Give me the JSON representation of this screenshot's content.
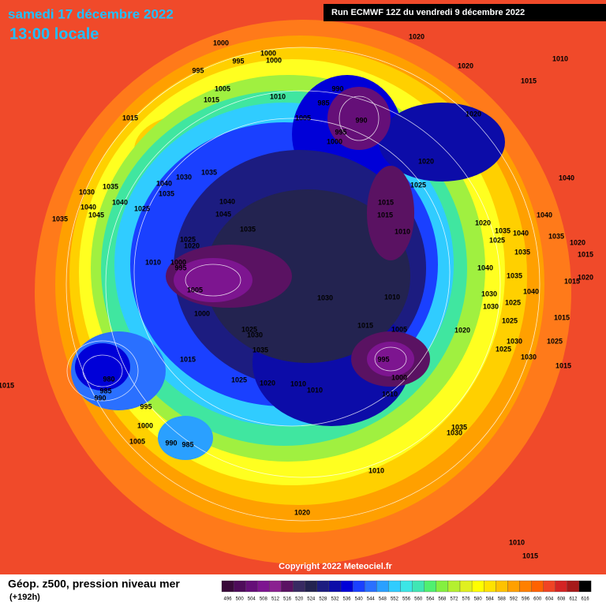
{
  "header": {
    "date": "samedi 17 décembre 2022",
    "time": "13:00 locale",
    "run": "Run ECMWF 12Z du vendredi 9 décembre 2022"
  },
  "map": {
    "copyright": "Copyright 2022 Meteociel.fr",
    "isobar_labels": [
      1000,
      995,
      1000,
      1000,
      995,
      1005,
      1015,
      1010,
      1015,
      1005,
      990,
      985,
      990,
      995,
      1000,
      1020,
      1020,
      1010,
      1015,
      1020,
      1020,
      1025,
      1040,
      1040,
      1035,
      1020,
      1015,
      1015,
      1020,
      1035,
      1040,
      1035,
      1030,
      1035,
      1030,
      1040,
      1045,
      1040,
      1025,
      1035,
      1040,
      1045,
      1035,
      1025,
      1020,
      1010,
      1000,
      995,
      1005,
      1000,
      1015,
      1015,
      1010,
      1030,
      1010,
      1015,
      1005,
      995,
      1000,
      1010,
      1020,
      1025,
      1030,
      1035,
      1015,
      1025,
      1020,
      1010,
      1010,
      980,
      985,
      990,
      995,
      1000,
      1005,
      990,
      985,
      1015,
      1020,
      1035,
      1040,
      1025,
      1035,
      1040,
      1035,
      1030,
      1030,
      1025,
      1040,
      1025,
      1015,
      1030,
      1025,
      1025,
      1030,
      1015,
      1035,
      1030,
      1010,
      1020,
      1010,
      1015
    ]
  },
  "footer": {
    "title": "Géop. z500, pression niveau mer",
    "lead": "(+192h)"
  },
  "scale": {
    "values": [
      496,
      500,
      504,
      508,
      512,
      516,
      520,
      524,
      528,
      532,
      536,
      540,
      544,
      548,
      552,
      556,
      560,
      564,
      568,
      572,
      576,
      580,
      584,
      588,
      592,
      596,
      600,
      604,
      608,
      612,
      616
    ],
    "colors": [
      "#3a0a3a",
      "#4e0c5a",
      "#650f78",
      "#7d1590",
      "#8a2090",
      "#5a1262",
      "#382a62",
      "#232350",
      "#1c1c80",
      "#0c0ca8",
      "#0000d8",
      "#1a40ff",
      "#2a70ff",
      "#2aa0ff",
      "#30ccff",
      "#3ce6e6",
      "#40e6b4",
      "#50f070",
      "#84f040",
      "#b4f030",
      "#e0f020",
      "#ffff00",
      "#ffe200",
      "#ffc200",
      "#ffa000",
      "#ff8000",
      "#ff6200",
      "#f04424",
      "#d42424",
      "#a61a1a",
      "#000000"
    ]
  }
}
